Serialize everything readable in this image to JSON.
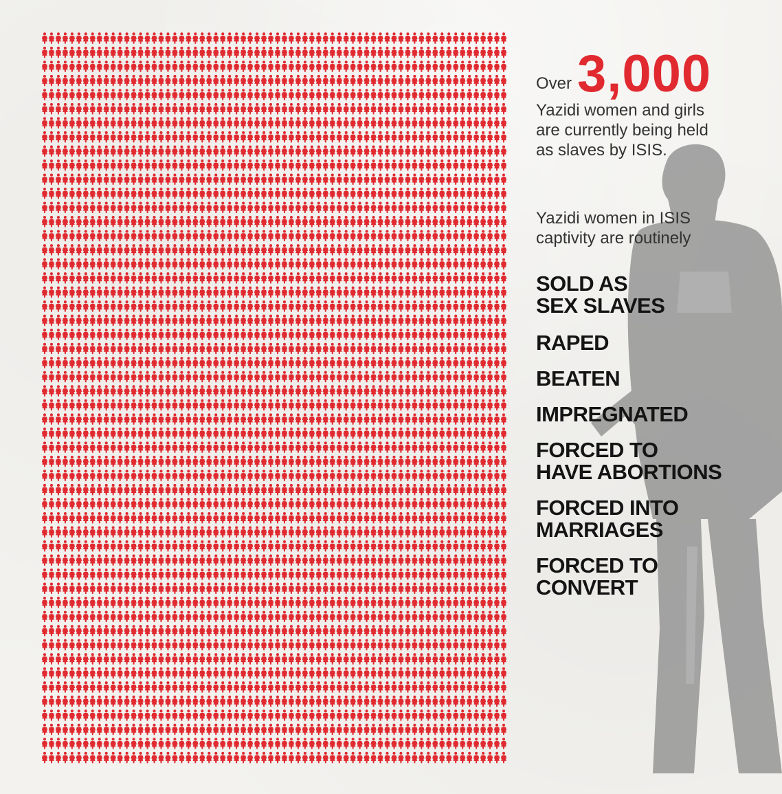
{
  "colors": {
    "accent": "#e02a30",
    "text": "#333333",
    "heading": "#141414",
    "background": "#f3f2ef",
    "figure": "#e02a30"
  },
  "grid": {
    "icon": "person-figure-icon",
    "columns": 68,
    "rows": 52
  },
  "headline": {
    "prefix": "Over",
    "number": "3,000",
    "description_lines": [
      "Yazidi women and girls",
      "are currently being held",
      "as slaves by ISIS."
    ]
  },
  "intro_lines": [
    "Yazidi women in ISIS",
    "captivity are routinely"
  ],
  "abuses": [
    {
      "lines": [
        "SOLD AS",
        "SEX SLAVES"
      ]
    },
    {
      "lines": [
        "RAPED"
      ]
    },
    {
      "lines": [
        "BEATEN"
      ]
    },
    {
      "lines": [
        "IMPREGNATED"
      ]
    },
    {
      "lines": [
        "FORCED TO",
        "HAVE ABORTIONS"
      ]
    },
    {
      "lines": [
        "FORCED INTO",
        "MARRIAGES"
      ]
    },
    {
      "lines": [
        "FORCED TO",
        "CONVERT"
      ]
    }
  ],
  "background_image": "soldier-silhouette"
}
